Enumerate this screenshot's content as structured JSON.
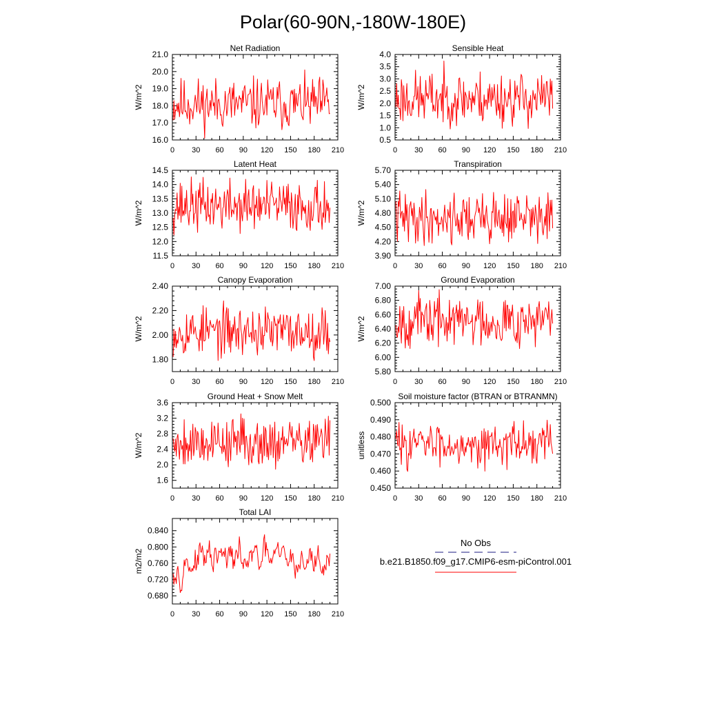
{
  "figure_title": "Polar(60-90N,-180W-180E)",
  "legend": {
    "obs_label": "No Obs",
    "obs_color": "#1a1a80",
    "model_label": "b.e21.B1850.f09_g17.CMIP6-esm-piControl.001",
    "model_color": "#ff0000"
  },
  "chart_data": [
    {
      "type": "line",
      "title": "Net Radiation",
      "xlabel": "",
      "ylabel": "W/m^2",
      "xlim": [
        0,
        210
      ],
      "ylim": [
        16.0,
        21.0
      ],
      "xticks": [
        "0",
        "30",
        "60",
        "90",
        "120",
        "150",
        "180",
        "210"
      ],
      "yticks": [
        "16.0",
        "17.0",
        "18.0",
        "19.0",
        "20.0",
        "21.0"
      ],
      "series": [
        {
          "color": "#ff0000",
          "n": 200,
          "mean": 18.1,
          "amp": 0.75,
          "min": 16.1,
          "max": 20.1,
          "seed": 11
        }
      ]
    },
    {
      "type": "line",
      "title": "Sensible Heat",
      "xlabel": "",
      "ylabel": "W/m^2",
      "xlim": [
        0,
        210
      ],
      "ylim": [
        0.5,
        4.0
      ],
      "xticks": [
        "0",
        "30",
        "60",
        "90",
        "120",
        "150",
        "180",
        "210"
      ],
      "yticks": [
        "0.5",
        "1.0",
        "1.5",
        "2.0",
        "2.5",
        "3.0",
        "3.5",
        "4.0"
      ],
      "series": [
        {
          "color": "#ff0000",
          "n": 200,
          "mean": 2.2,
          "amp": 0.55,
          "min": 0.95,
          "max": 3.75,
          "seed": 23
        }
      ]
    },
    {
      "type": "line",
      "title": "Latent Heat",
      "xlabel": "",
      "ylabel": "W/m^2",
      "xlim": [
        0,
        210
      ],
      "ylim": [
        11.5,
        14.5
      ],
      "xticks": [
        "0",
        "30",
        "60",
        "90",
        "120",
        "150",
        "180",
        "210"
      ],
      "yticks": [
        "11.5",
        "12.0",
        "12.5",
        "13.0",
        "13.5",
        "14.0",
        "14.5"
      ],
      "series": [
        {
          "color": "#ff0000",
          "n": 200,
          "mean": 13.25,
          "amp": 0.45,
          "min": 11.9,
          "max": 14.45,
          "seed": 37
        }
      ]
    },
    {
      "type": "line",
      "title": "Transpiration",
      "xlabel": "",
      "ylabel": "W/m^2",
      "xlim": [
        0,
        210
      ],
      "ylim": [
        3.9,
        5.7
      ],
      "xticks": [
        "0",
        "30",
        "60",
        "90",
        "120",
        "150",
        "180",
        "210"
      ],
      "yticks": [
        "3.90",
        "4.20",
        "4.50",
        "4.80",
        "5.10",
        "5.40",
        "5.70"
      ],
      "series": [
        {
          "color": "#ff0000",
          "n": 200,
          "mean": 4.7,
          "amp": 0.27,
          "min": 3.95,
          "max": 5.55,
          "seed": 41
        }
      ]
    },
    {
      "type": "line",
      "title": "Canopy Evaporation",
      "xlabel": "",
      "ylabel": "W/m^2",
      "xlim": [
        0,
        210
      ],
      "ylim": [
        1.7,
        2.4
      ],
      "xticks": [
        "0",
        "30",
        "60",
        "90",
        "120",
        "150",
        "180",
        "210"
      ],
      "yticks": [
        "1.80",
        "2.00",
        "2.20",
        "2.40"
      ],
      "series": [
        {
          "color": "#ff0000",
          "n": 200,
          "mean": 2.03,
          "amp": 0.1,
          "min": 1.74,
          "max": 2.37,
          "seed": 53
        }
      ]
    },
    {
      "type": "line",
      "title": "Ground Evaporation",
      "xlabel": "",
      "ylabel": "W/m^2",
      "xlim": [
        0,
        210
      ],
      "ylim": [
        5.8,
        7.0
      ],
      "xticks": [
        "0",
        "30",
        "60",
        "90",
        "120",
        "150",
        "180",
        "210"
      ],
      "yticks": [
        "5.80",
        "6.00",
        "6.20",
        "6.40",
        "6.60",
        "6.80",
        "7.00"
      ],
      "series": [
        {
          "color": "#ff0000",
          "n": 200,
          "mean": 6.52,
          "amp": 0.18,
          "min": 5.96,
          "max": 6.95,
          "seed": 67
        }
      ]
    },
    {
      "type": "line",
      "title": "Ground Heat + Snow Melt",
      "xlabel": "",
      "ylabel": "W/m^2",
      "xlim": [
        0,
        210
      ],
      "ylim": [
        1.4,
        3.6
      ],
      "xticks": [
        "0",
        "30",
        "60",
        "90",
        "120",
        "150",
        "180",
        "210"
      ],
      "yticks": [
        "1.6",
        "2.0",
        "2.4",
        "2.8",
        "3.2",
        "3.6"
      ],
      "series": [
        {
          "color": "#ff0000",
          "n": 200,
          "mean": 2.6,
          "amp": 0.32,
          "min": 1.72,
          "max": 3.43,
          "seed": 79
        }
      ]
    },
    {
      "type": "line",
      "title": "Soil moisture factor (BTRAN or BTRANMN)",
      "xlabel": "",
      "ylabel": "unitless",
      "xlim": [
        0,
        210
      ],
      "ylim": [
        0.45,
        0.5
      ],
      "xticks": [
        "0",
        "30",
        "60",
        "90",
        "120",
        "150",
        "180",
        "210"
      ],
      "yticks": [
        "0.450",
        "0.460",
        "0.470",
        "0.480",
        "0.490",
        "0.500"
      ],
      "series": [
        {
          "color": "#ff0000",
          "n": 200,
          "mean": 0.476,
          "amp": 0.006,
          "min": 0.456,
          "max": 0.491,
          "seed": 83
        }
      ]
    },
    {
      "type": "line",
      "title": "Total LAI",
      "xlabel": "",
      "ylabel": "m2/m2",
      "xlim": [
        0,
        210
      ],
      "ylim": [
        0.66,
        0.87
      ],
      "xticks": [
        "0",
        "30",
        "60",
        "90",
        "120",
        "150",
        "180",
        "210"
      ],
      "yticks": [
        "0.680",
        "0.720",
        "0.760",
        "0.800",
        "0.840"
      ],
      "series": [
        {
          "color": "#ff0000",
          "n": 200,
          "mean": 0.765,
          "amp": 0.03,
          "min": 0.688,
          "max": 0.85,
          "smooth": true,
          "seed": 97
        }
      ]
    }
  ]
}
